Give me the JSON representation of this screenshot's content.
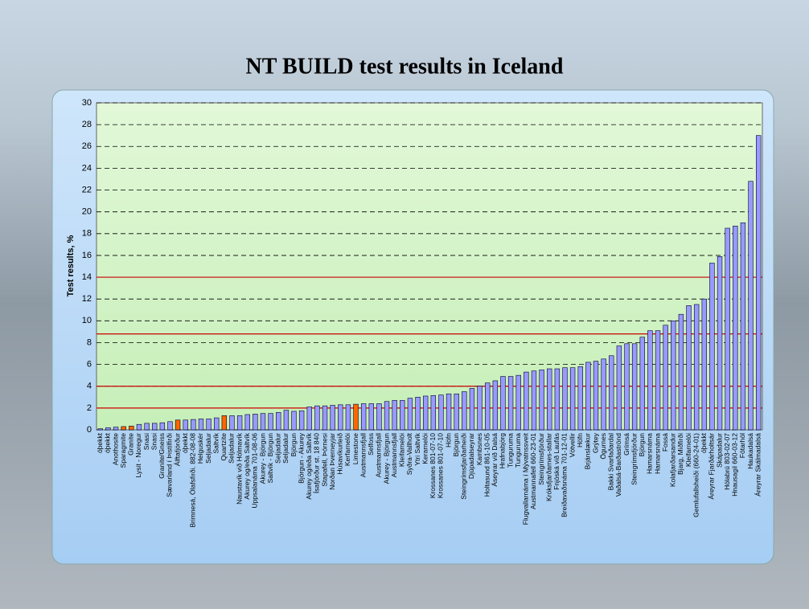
{
  "chart_data": {
    "type": "bar",
    "title": "NT BUILD test results in Iceland",
    "y_label": "Test results, %",
    "categories": [
      "óþekkt",
      "óþekkt",
      "Anothosite",
      "Sparagmite",
      "Granite",
      "Lysit - Noregur",
      "Snasi",
      "Snasi",
      "Granite/Gneiss",
      "Sævarland í Þistilfirði",
      "Álftafjörður",
      "óþekkt",
      "Brimnesá, Ólafsfirði. 882-08-08",
      "Helguskér",
      "Seljadalur",
      "Saltvík",
      "Quartzite",
      "Seljadalur",
      "Naustavík við Hólmavík",
      "Akurey og/eða Saltvík",
      "Uppsalanáma 701-08-06",
      "Akurey - Björgun",
      "Saltvík - Björgun",
      "Seljadalur",
      "Seljadalur",
      "Björgun",
      "Björgun - Akurey",
      "Akurey og/eða Saltvík",
      "Ísafjörður st. 18 840",
      "Stapafell, Þórnesi",
      "Norðan Þverneyjar",
      "Húsavíkurleið",
      "Kerfarnelói",
      "Limestone",
      "Austmannsfjall",
      "Selfoss",
      "Austmannsfjall",
      "Akurey - Björgun",
      "Austmannsfjall",
      "Kleifarnelói",
      "Syðra-Vallholt",
      "Ytri Saltvík",
      "Kerarnelói",
      "Krossanes 801-07-10",
      "Krossanes 801-07-10",
      "Höfn",
      "Björgun",
      "Steingrímsfjarðarheiði",
      "Djúpadalseyrar",
      "Kambsnes",
      "Holtasund 861-10-05",
      "Áseyrar við Dalsá",
      "Hrafnabjörg",
      "Tunguruma",
      "Tunguruma",
      "Flugvallarnáma í Mývatnssveit",
      "Austmannafell 660-23-01",
      "Steingrímsfjörður",
      "Króksfjarðarnes-stallar",
      "Fnjóská við Laufás",
      "Breiðavaðsnáma 701-12-01",
      "Vötvellir",
      "Höfn",
      "Brjánslækur",
      "Grýtey",
      "Ögurnes",
      "Bakki Svarfaðardal",
      "Vaðalsá-Barðaströnd",
      "Grímsá",
      "Steingrímsfjörður",
      "Björgun",
      "Hamarsnáma",
      "Hamarsnáma",
      "Fossá",
      "Kolafjarðarsandur",
      "Bjarg, Miðfirði",
      "Kleifarnelói",
      "Gemlufallsheiði (660-24-01)",
      "óþekkt",
      "Áreyrar Fjarðárholtsár",
      "Skápadalur",
      "Hólabrú 803-02-07",
      "Hnausagil 660-03-12",
      "Fótarhól",
      "Haukadalsá",
      "Áreyrar Skálmadalsá"
    ],
    "values": [
      0.1,
      0.2,
      0.25,
      0.3,
      0.35,
      0.5,
      0.6,
      0.6,
      0.65,
      0.75,
      0.9,
      0.9,
      0.95,
      1.0,
      1.0,
      1.1,
      1.3,
      1.3,
      1.3,
      1.4,
      1.45,
      1.5,
      1.5,
      1.6,
      1.8,
      1.7,
      1.75,
      2.1,
      2.2,
      2.2,
      2.25,
      2.3,
      2.3,
      2.35,
      2.4,
      2.4,
      2.4,
      2.6,
      2.7,
      2.7,
      2.9,
      3.0,
      3.1,
      3.15,
      3.2,
      3.3,
      3.3,
      3.5,
      3.8,
      4.0,
      4.3,
      4.5,
      4.9,
      4.9,
      5.0,
      5.3,
      5.4,
      5.5,
      5.6,
      5.6,
      5.7,
      5.7,
      5.8,
      6.2,
      6.3,
      6.5,
      6.8,
      7.7,
      7.9,
      7.9,
      8.5,
      9.1,
      9.1,
      9.6,
      10.0,
      10.6,
      11.4,
      11.5,
      12.0,
      15.3,
      15.9,
      18.5,
      18.7,
      19.0,
      22.8,
      27.0
    ],
    "color": "#9999ff",
    "highlight_color": "#ff6600",
    "highlight_indices": [
      3,
      4,
      10,
      16,
      33
    ],
    "reference_lines": [
      2,
      4,
      8.8,
      14
    ],
    "reference_color": "#cc0000",
    "ylim": [
      0,
      30
    ],
    "yticks": [
      0,
      2,
      4,
      6,
      8,
      10,
      12,
      14,
      16,
      18,
      20,
      22,
      24,
      26,
      28,
      30
    ],
    "grid": true
  }
}
